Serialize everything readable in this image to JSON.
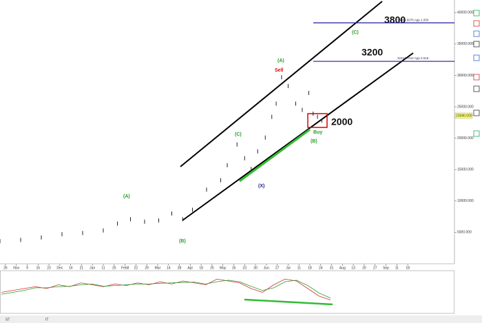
{
  "chart_data": {
    "type": "ohlc",
    "xlim": [
      0,
      38
    ],
    "xticks": [
      {
        "value": 0.5,
        "label": "26"
      },
      {
        "value": 1.5,
        "label": "Nov"
      },
      {
        "value": 2.5,
        "label": "9"
      },
      {
        "value": 3.5,
        "label": "16"
      },
      {
        "value": 4.5,
        "label": "23"
      },
      {
        "value": 5.5,
        "label": "Dec"
      },
      {
        "value": 6.5,
        "label": "14"
      },
      {
        "value": 7.5,
        "label": "21"
      },
      {
        "value": 8.5,
        "label": "Jan"
      },
      {
        "value": 9.5,
        "label": "11"
      },
      {
        "value": 10.5,
        "label": "25"
      },
      {
        "value": 11.5,
        "label": "Feb8"
      },
      {
        "value": 12.5,
        "label": "22"
      },
      {
        "value": 13.5,
        "label": "29"
      },
      {
        "value": 14.5,
        "label": "Mar"
      },
      {
        "value": 15.5,
        "label": "14"
      },
      {
        "value": 16.5,
        "label": "28"
      },
      {
        "value": 17.5,
        "label": "Apr"
      },
      {
        "value": 18.5,
        "label": "18"
      },
      {
        "value": 19.5,
        "label": "25"
      },
      {
        "value": 20.5,
        "label": "May"
      },
      {
        "value": 21.5,
        "label": "16"
      },
      {
        "value": 22.5,
        "label": "23"
      },
      {
        "value": 23.5,
        "label": "30"
      },
      {
        "value": 24.5,
        "label": "Jun"
      },
      {
        "value": 25.5,
        "label": "27"
      },
      {
        "value": 26.5,
        "label": "Jul"
      },
      {
        "value": 27.5,
        "label": "11"
      },
      {
        "value": 28.5,
        "label": "18"
      },
      {
        "value": 29.5,
        "label": "24"
      },
      {
        "value": 30.5,
        "label": "31"
      },
      {
        "value": 31.5,
        "label": "Aug"
      },
      {
        "value": 32.5,
        "label": "13"
      },
      {
        "value": 33.5,
        "label": "20"
      },
      {
        "value": 34.5,
        "label": "27"
      },
      {
        "value": 35.5,
        "label": "Sep"
      },
      {
        "value": 36.5,
        "label": "11"
      },
      {
        "value": 37.5,
        "label": "18"
      }
    ],
    "ylim": [
      0,
      42000
    ],
    "yticks": [
      {
        "value": 5000,
        "label": "5000.000"
      },
      {
        "value": 10000,
        "label": "10000.000"
      },
      {
        "value": 15000,
        "label": "15000.000"
      },
      {
        "value": 20000,
        "label": "20000.000"
      },
      {
        "value": 25000,
        "label": "25000.000"
      },
      {
        "value": 30000,
        "label": "30000.000"
      },
      {
        "value": 35000,
        "label": "35000.000"
      },
      {
        "value": 40000,
        "label": "40000.000"
      }
    ],
    "series": [
      {
        "color": "#222222",
        "x": [
          0,
          1.9,
          3.8,
          5.7,
          7.6,
          9.5,
          10.8,
          12,
          13.3,
          14.6,
          15.8,
          16.8,
          17.7,
          19,
          20.3,
          20.9,
          21.8,
          22.5,
          23.1,
          23.7,
          24.4,
          25,
          25.4,
          25.9,
          26.5,
          27.2,
          27.8,
          28.4,
          28.8,
          29.2,
          29.6
        ],
        "values": [
          3600,
          3800,
          4200,
          4700,
          4900,
          5300,
          6400,
          7100,
          6700,
          6900,
          8000,
          7100,
          8600,
          11800,
          13300,
          15700,
          19000,
          16800,
          15100,
          17900,
          20100,
          23400,
          25500,
          29700,
          28300,
          25500,
          24500,
          27200,
          23900,
          23400,
          22800
        ]
      }
    ],
    "levels": [
      {
        "value": 38366.5076,
        "label": "38366.5076 App 1.000",
        "color": "#1a1aa0"
      },
      {
        "value": 32234.7012,
        "label": "32234.7012 App 0.618",
        "color": "#1a1aa0"
      }
    ],
    "last_price": {
      "value": 23580,
      "label": "23580.000"
    },
    "annotations": [
      "3800",
      "3200",
      "2000",
      "(C)",
      "(A)",
      "Sell",
      "Buy",
      "(B)",
      "(C)",
      "(X)",
      "(A)",
      "(B)"
    ],
    "oscillator": {
      "ylim": [
        0,
        100
      ],
      "series": [
        {
          "color": "#d03030",
          "values": [
            50,
            55,
            60,
            65,
            60,
            70,
            65,
            75,
            70,
            65,
            72,
            68,
            75,
            70,
            78,
            72,
            80,
            75,
            70,
            85,
            80,
            75,
            60,
            50,
            70,
            85,
            80,
            60,
            40,
            30
          ]
        },
        {
          "color": "#2a9a2a",
          "values": [
            45,
            50,
            55,
            62,
            62,
            65,
            66,
            70,
            72,
            66,
            68,
            70,
            72,
            72,
            74,
            75,
            76,
            77,
            72,
            78,
            82,
            78,
            66,
            55,
            62,
            78,
            82,
            68,
            48,
            35
          ]
        }
      ]
    },
    "tabs": [
      "ST",
      "IT"
    ]
  }
}
